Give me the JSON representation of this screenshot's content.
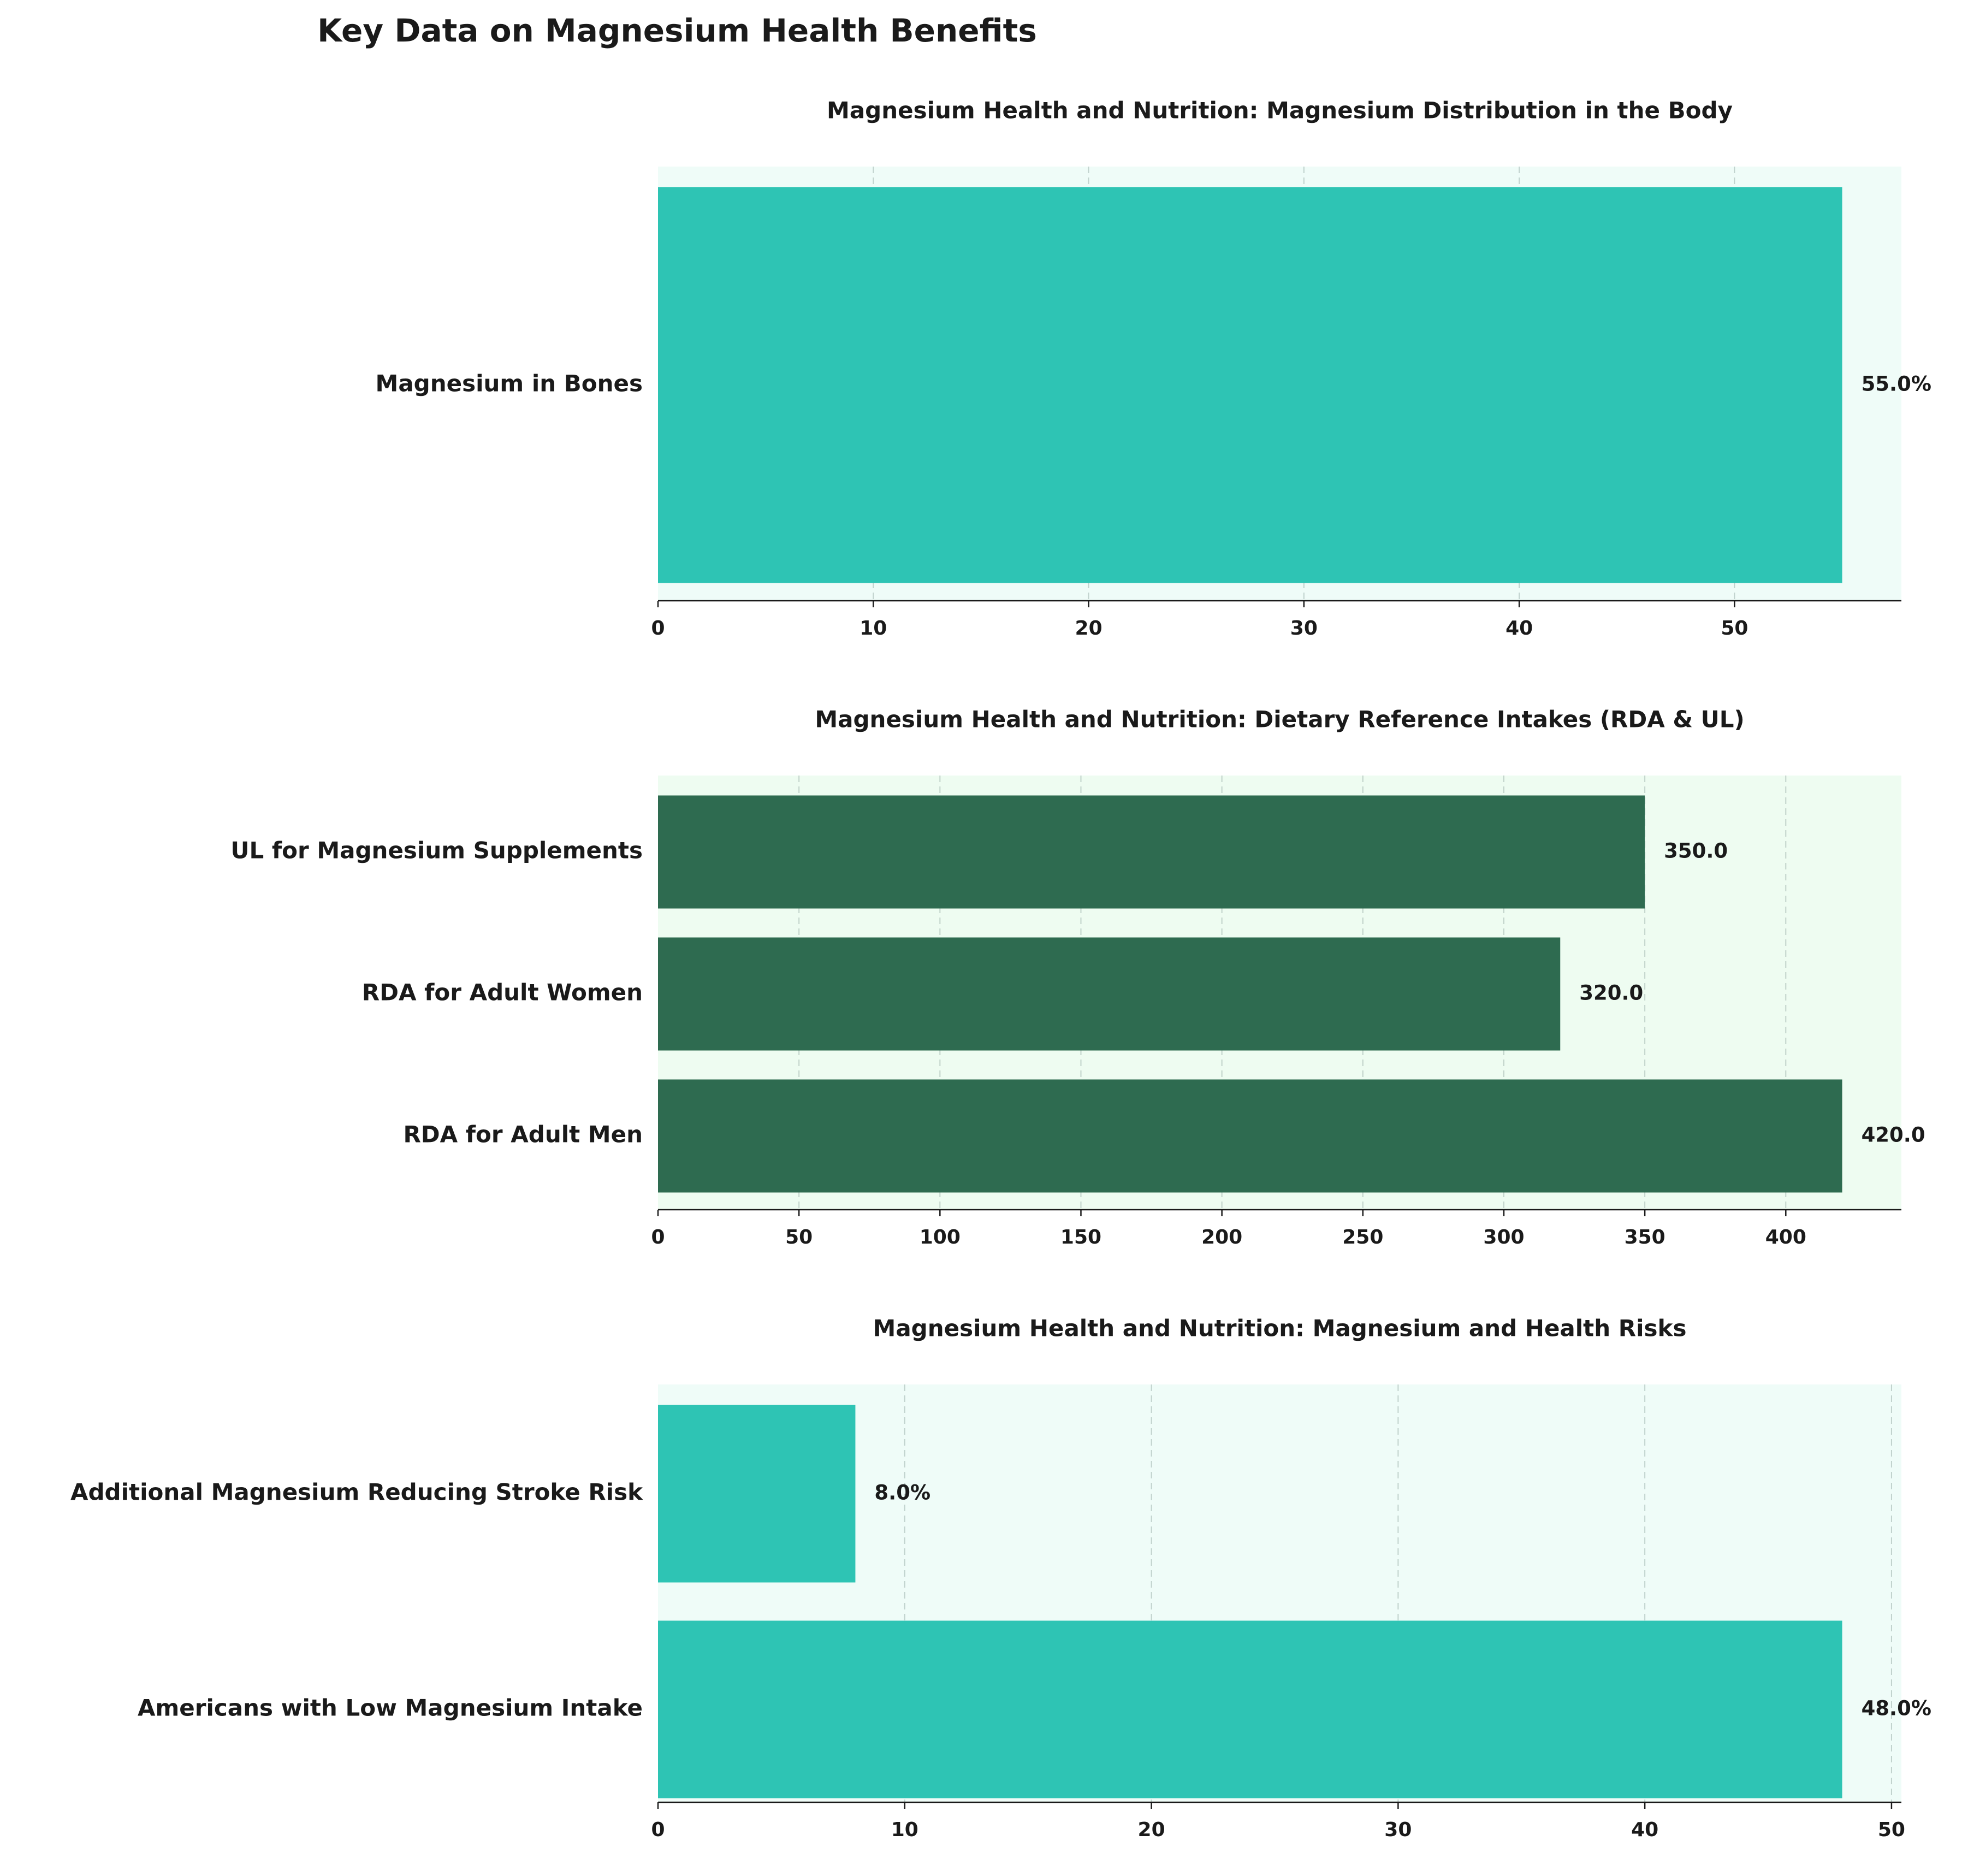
{
  "figure_title": "Key Data on Magnesium Health Benefits",
  "colors": {
    "teal": "#2ec4b4",
    "dark_green": "#2e6b50",
    "panel_bg_teal": "#effcf8",
    "panel_bg_green": "#eefcf1"
  },
  "chart_data": [
    {
      "type": "bar",
      "orientation": "horizontal",
      "title": "Magnesium Health and Nutrition: Magnesium Distribution in the Body",
      "categories": [
        "Magnesium in Bones"
      ],
      "values": [
        55.0
      ],
      "value_labels": [
        "55.0%"
      ],
      "xlim": [
        0,
        57.75
      ],
      "xticks": [
        0,
        10,
        20,
        30,
        40,
        50
      ],
      "xtick_labels": [
        "0",
        "10",
        "20",
        "30",
        "40",
        "50"
      ],
      "grid": "x",
      "bar_color": "#2ec4b4",
      "background": "#effcf8"
    },
    {
      "type": "bar",
      "orientation": "horizontal",
      "title": "Magnesium Health and Nutrition: Dietary Reference Intakes (RDA & UL)",
      "categories": [
        "RDA for Adult Men",
        "RDA for Adult Women",
        "UL for Magnesium Supplements"
      ],
      "values": [
        420.0,
        320.0,
        350.0
      ],
      "value_labels": [
        "420.0",
        "320.0",
        "350.0"
      ],
      "xlim": [
        0,
        441
      ],
      "xticks": [
        0,
        50,
        100,
        150,
        200,
        250,
        300,
        350,
        400
      ],
      "xtick_labels": [
        "0",
        "50",
        "100",
        "150",
        "200",
        "250",
        "300",
        "350",
        "400"
      ],
      "grid": "x",
      "bar_color": "#2e6b50",
      "background": "#eefcf1"
    },
    {
      "type": "bar",
      "orientation": "horizontal",
      "title": "Magnesium Health and Nutrition: Magnesium and Health Risks",
      "categories": [
        "Americans with Low Magnesium Intake",
        "Additional Magnesium Reducing Stroke Risk"
      ],
      "values": [
        48.0,
        8.0
      ],
      "value_labels": [
        "48.0%",
        "8.0%"
      ],
      "xlim": [
        0,
        50.4
      ],
      "xticks": [
        0,
        10,
        20,
        30,
        40,
        50
      ],
      "xtick_labels": [
        "0",
        "10",
        "20",
        "30",
        "40",
        "50"
      ],
      "grid": "x",
      "bar_color": "#2ec4b4",
      "background": "#effcf8"
    }
  ]
}
